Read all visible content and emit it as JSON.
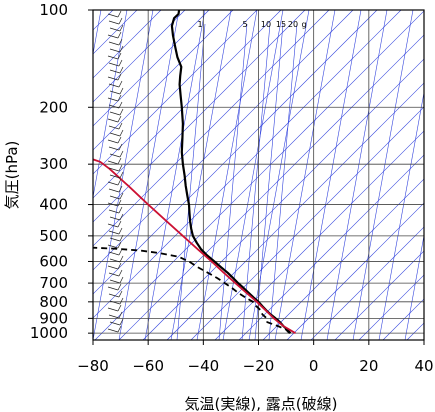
{
  "chart_data": {
    "type": "line",
    "chart_kind": "skew-T log-P sounding",
    "xlabel": "気温(実線), 露点(破線)",
    "ylabel": "気圧(hPa)",
    "x_axis": {
      "ticks": [
        -80,
        -60,
        -40,
        -20,
        0,
        20,
        40
      ],
      "range": [
        -80,
        40
      ]
    },
    "y_axis": {
      "scale": "log",
      "ticks": [
        100,
        200,
        300,
        400,
        500,
        600,
        700,
        800,
        900,
        1000
      ],
      "range": [
        1050,
        100
      ]
    },
    "grid": true,
    "mixing_ratio_labels": [
      "1",
      "5",
      "10",
      "15",
      "20",
      "g"
    ],
    "series": [
      {
        "role": "temperature",
        "style": "solid",
        "color": "#000000",
        "points": [
          [
            1000,
            -8.4
          ],
          [
            975,
            -9.6
          ],
          [
            950,
            -11.0
          ],
          [
            925,
            -12.2
          ],
          [
            900,
            -13.8
          ],
          [
            875,
            -15.6
          ],
          [
            850,
            -17.2
          ],
          [
            825,
            -18.6
          ],
          [
            800,
            -20.0
          ],
          [
            775,
            -21.8
          ],
          [
            750,
            -23.6
          ],
          [
            725,
            -25.4
          ],
          [
            700,
            -27.4
          ],
          [
            675,
            -29.2
          ],
          [
            650,
            -31.2
          ],
          [
            625,
            -33.6
          ],
          [
            600,
            -36.0
          ],
          [
            575,
            -38.6
          ],
          [
            550,
            -40.8
          ],
          [
            525,
            -42.4
          ],
          [
            500,
            -43.8
          ],
          [
            475,
            -44.4
          ],
          [
            450,
            -44.8
          ],
          [
            425,
            -45.0
          ],
          [
            400,
            -45.2
          ],
          [
            375,
            -45.8
          ],
          [
            350,
            -46.4
          ],
          [
            325,
            -46.8
          ],
          [
            300,
            -47.4
          ],
          [
            275,
            -47.8
          ],
          [
            250,
            -47.6
          ],
          [
            225,
            -47.4
          ],
          [
            200,
            -47.8
          ],
          [
            185,
            -48.2
          ],
          [
            170,
            -48.6
          ],
          [
            160,
            -48.4
          ],
          [
            150,
            -48.0
          ],
          [
            140,
            -49.4
          ],
          [
            130,
            -50.2
          ],
          [
            120,
            -51.0
          ],
          [
            112,
            -51.4
          ],
          [
            106,
            -50.6
          ],
          [
            103,
            -49.0
          ],
          [
            100,
            -48.8
          ]
        ]
      },
      {
        "role": "dewpoint",
        "style": "dashed",
        "color": "#000000",
        "points": [
          [
            1000,
            -8.8
          ],
          [
            975,
            -10.0
          ],
          [
            950,
            -13.0
          ],
          [
            925,
            -16.8
          ],
          [
            900,
            -17.0
          ],
          [
            875,
            -18.6
          ],
          [
            850,
            -19.2
          ],
          [
            825,
            -20.8
          ],
          [
            800,
            -22.0
          ],
          [
            775,
            -24.8
          ],
          [
            750,
            -27.4
          ],
          [
            725,
            -29.6
          ],
          [
            700,
            -32.2
          ],
          [
            675,
            -35.0
          ],
          [
            650,
            -38.4
          ],
          [
            625,
            -42.0
          ],
          [
            600,
            -45.2
          ],
          [
            580,
            -49.0
          ],
          [
            565,
            -56.0
          ],
          [
            555,
            -63.0
          ],
          [
            548,
            -72.0
          ],
          [
            544,
            -80.0
          ]
        ]
      },
      {
        "role": "reference adiabat",
        "style": "solid",
        "color": "#cc1133",
        "points": [
          [
            1000,
            -6.6
          ],
          [
            950,
            -11.0
          ],
          [
            900,
            -14.4
          ],
          [
            850,
            -17.4
          ],
          [
            800,
            -20.6
          ],
          [
            750,
            -24.4
          ],
          [
            700,
            -28.4
          ],
          [
            650,
            -32.6
          ],
          [
            600,
            -37.0
          ],
          [
            550,
            -42.0
          ],
          [
            500,
            -47.4
          ],
          [
            450,
            -53.4
          ],
          [
            400,
            -60.0
          ],
          [
            350,
            -67.2
          ],
          [
            310,
            -74.0
          ],
          [
            295,
            -77.4
          ],
          [
            290,
            -80.0
          ]
        ]
      }
    ]
  },
  "colors": {
    "grid": "#444444",
    "background_lines": "#3344dd",
    "temperature": "#000000",
    "dewpoint": "#000000",
    "adiabat": "#cc1133"
  }
}
